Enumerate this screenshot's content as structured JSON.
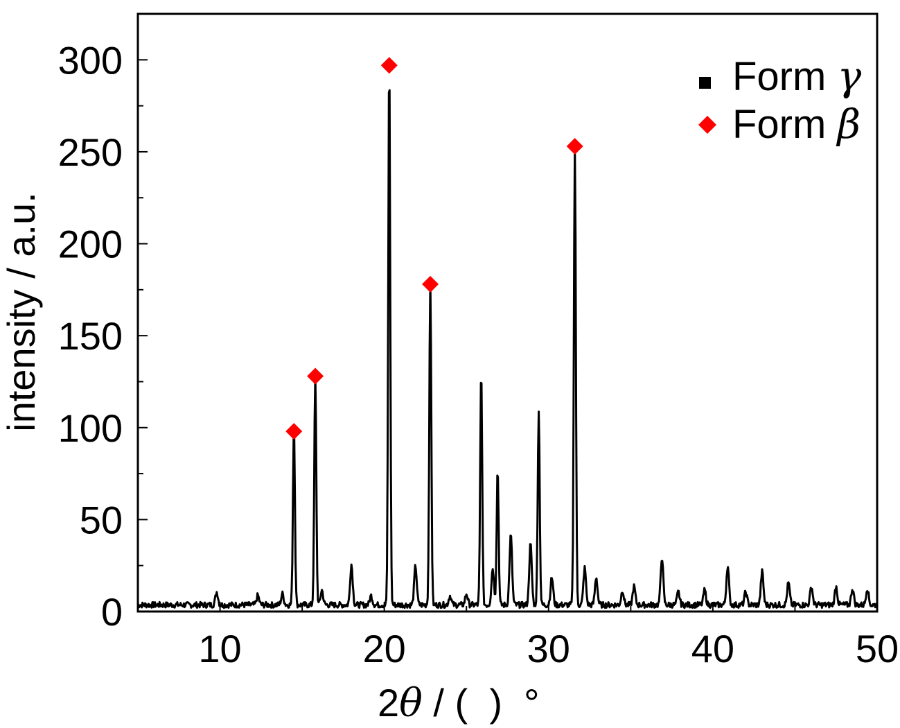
{
  "chart_data": {
    "type": "line",
    "title": "",
    "xlabel": "2θ / (  )  °",
    "xlabel_parts": {
      "prefix": "2",
      "theta": "θ",
      "suffix": " / (  )  °"
    },
    "ylabel": "intensity / a.u.",
    "xlim": [
      5,
      50
    ],
    "ylim": [
      0,
      325
    ],
    "x_ticks": [
      10,
      20,
      30,
      40,
      50
    ],
    "y_ticks": [
      0,
      50,
      100,
      150,
      200,
      250,
      300
    ],
    "grid": false,
    "legend_position": "top-right",
    "legend": [
      {
        "label": "Form",
        "symbol": "γ",
        "marker": "square",
        "color": "#000000"
      },
      {
        "label": "Form",
        "symbol": "β",
        "marker": "diamond",
        "color": "#ff0000"
      }
    ],
    "series": [
      {
        "type": "line",
        "color": "#000000",
        "baseline": 2,
        "peaks": [
          [
            9.8,
            7
          ],
          [
            12.3,
            5
          ],
          [
            13.8,
            6
          ],
          [
            14.5,
            97
          ],
          [
            15.8,
            125
          ],
          [
            16.2,
            8
          ],
          [
            18.0,
            22
          ],
          [
            19.2,
            5
          ],
          [
            20.3,
            295
          ],
          [
            21.9,
            21
          ],
          [
            22.8,
            176
          ],
          [
            24.0,
            5
          ],
          [
            25.0,
            6
          ],
          [
            25.9,
            127
          ],
          [
            26.6,
            20
          ],
          [
            26.9,
            74
          ],
          [
            27.7,
            38
          ],
          [
            28.9,
            33
          ],
          [
            29.4,
            106
          ],
          [
            30.2,
            15
          ],
          [
            31.6,
            250
          ],
          [
            32.2,
            20
          ],
          [
            32.9,
            15
          ],
          [
            34.5,
            8
          ],
          [
            35.2,
            10
          ],
          [
            36.9,
            26
          ],
          [
            37.9,
            7
          ],
          [
            39.5,
            8
          ],
          [
            40.9,
            21
          ],
          [
            42.0,
            7
          ],
          [
            43.0,
            18
          ],
          [
            44.6,
            12
          ],
          [
            46.0,
            10
          ],
          [
            47.5,
            10
          ],
          [
            48.5,
            9
          ],
          [
            49.4,
            9
          ]
        ]
      }
    ],
    "markers": [
      {
        "x": 14.5,
        "y": 98,
        "marker": "diamond",
        "color": "#ff0000"
      },
      {
        "x": 15.8,
        "y": 128,
        "marker": "diamond",
        "color": "#ff0000"
      },
      {
        "x": 20.3,
        "y": 297,
        "marker": "diamond",
        "color": "#ff0000"
      },
      {
        "x": 22.8,
        "y": 178,
        "marker": "diamond",
        "color": "#ff0000"
      },
      {
        "x": 31.6,
        "y": 253,
        "marker": "diamond",
        "color": "#ff0000"
      }
    ]
  }
}
